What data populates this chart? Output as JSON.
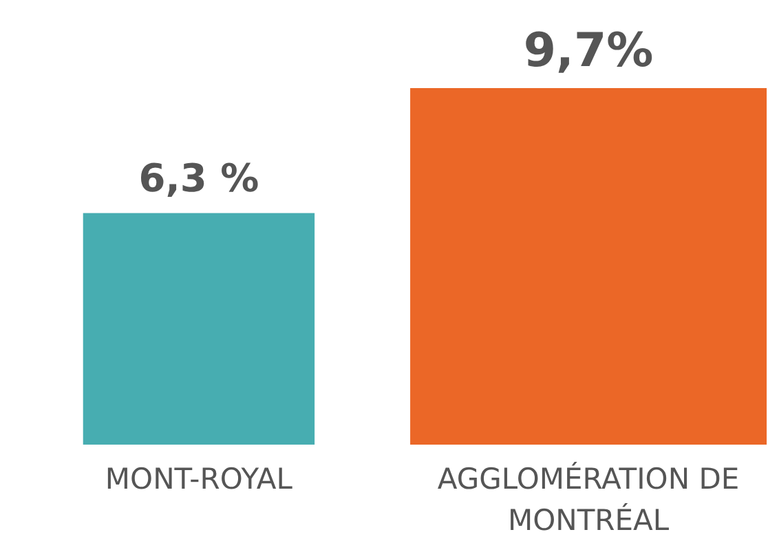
{
  "chart_data": {
    "type": "bar",
    "categories": [
      "MONT-ROYAL",
      "AGGLOMÉRATION DE MONTRÉAL"
    ],
    "values": [
      6.3,
      9.7
    ],
    "colors": [
      "#47adb1",
      "#eb6727"
    ],
    "value_labels": [
      "6,3 %",
      "9,7%"
    ]
  }
}
